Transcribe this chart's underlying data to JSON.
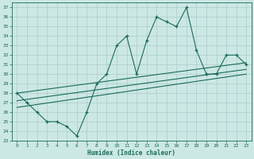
{
  "xlabel": "Humidex (Indice chaleur)",
  "bg_color": "#cce8e4",
  "grid_color": "#aacccc",
  "line_color": "#1a6b5a",
  "xlim": [
    -0.5,
    23.5
  ],
  "ylim": [
    23,
    37.5
  ],
  "yticks": [
    23,
    24,
    25,
    26,
    27,
    28,
    29,
    30,
    31,
    32,
    33,
    34,
    35,
    36,
    37
  ],
  "xticks": [
    0,
    1,
    2,
    3,
    4,
    5,
    6,
    7,
    8,
    9,
    10,
    11,
    12,
    13,
    14,
    15,
    16,
    17,
    18,
    19,
    20,
    21,
    22,
    23
  ],
  "main_x": [
    0,
    1,
    2,
    3,
    4,
    5,
    6,
    7,
    8,
    9,
    10,
    11,
    12,
    13,
    14,
    15,
    16,
    17,
    18,
    19,
    20,
    21,
    22,
    23
  ],
  "main_y": [
    28,
    27,
    26,
    25,
    25,
    24.5,
    23.5,
    26,
    29,
    30,
    33,
    34,
    30,
    33.5,
    36,
    35.5,
    35,
    37,
    32.5,
    30,
    30,
    32,
    32,
    31
  ],
  "line1_x": [
    0,
    23
  ],
  "line1_y": [
    28.0,
    31.2
  ],
  "line2_x": [
    0,
    23
  ],
  "line2_y": [
    27.2,
    30.5
  ],
  "line3_x": [
    0,
    23
  ],
  "line3_y": [
    26.5,
    30.0
  ]
}
